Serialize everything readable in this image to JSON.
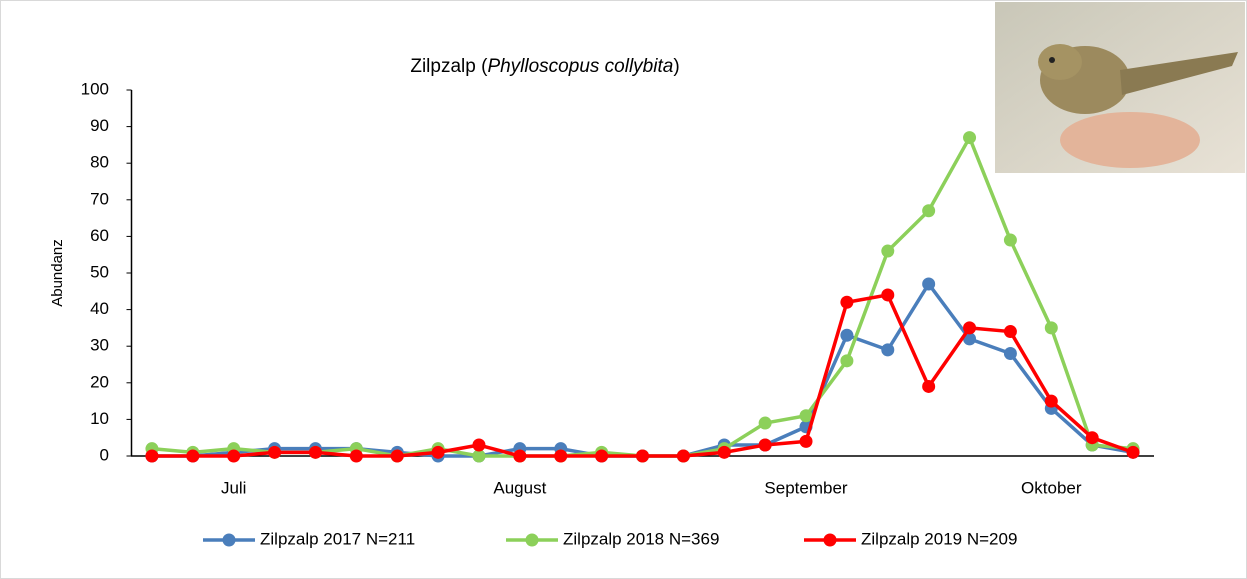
{
  "chart_data": {
    "type": "line",
    "title": [
      "Zilpzalp (",
      "Phylloscopus collybita",
      ")"
    ],
    "y_label": "Abundanz",
    "categories": [
      null,
      null,
      "Juli",
      null,
      null,
      null,
      null,
      null,
      null,
      "August",
      null,
      null,
      null,
      null,
      null,
      null,
      "September",
      null,
      null,
      null,
      null,
      null,
      "Oktober",
      null,
      null
    ],
    "series": [
      {
        "name": "Zilpzalp 2017 N=211",
        "color": "#4a7ebb",
        "values": [
          0,
          0,
          1,
          2,
          2,
          2,
          1,
          0,
          0,
          2,
          2,
          0,
          0,
          0,
          3,
          3,
          8,
          33,
          29,
          47,
          32,
          28,
          13,
          3,
          1
        ]
      },
      {
        "name": "Zilpzalp 2018 N=369",
        "color": "#8cd05a",
        "values": [
          2,
          1,
          2,
          1,
          1,
          2,
          0,
          2,
          0,
          0,
          0,
          1,
          0,
          0,
          2,
          9,
          11,
          26,
          56,
          67,
          87,
          59,
          35,
          3,
          2
        ]
      },
      {
        "name": "Zilpzalp 2019 N=209",
        "color": "#ff0000",
        "values": [
          0,
          0,
          0,
          1,
          1,
          0,
          0,
          1,
          3,
          0,
          0,
          0,
          0,
          0,
          1,
          3,
          4,
          42,
          44,
          19,
          35,
          34,
          15,
          5,
          1
        ]
      }
    ],
    "ylim": [
      0,
      100
    ],
    "yticks": [
      0,
      10,
      20,
      30,
      40,
      50,
      60,
      70,
      80,
      90,
      100
    ],
    "legend": "bottom"
  }
}
